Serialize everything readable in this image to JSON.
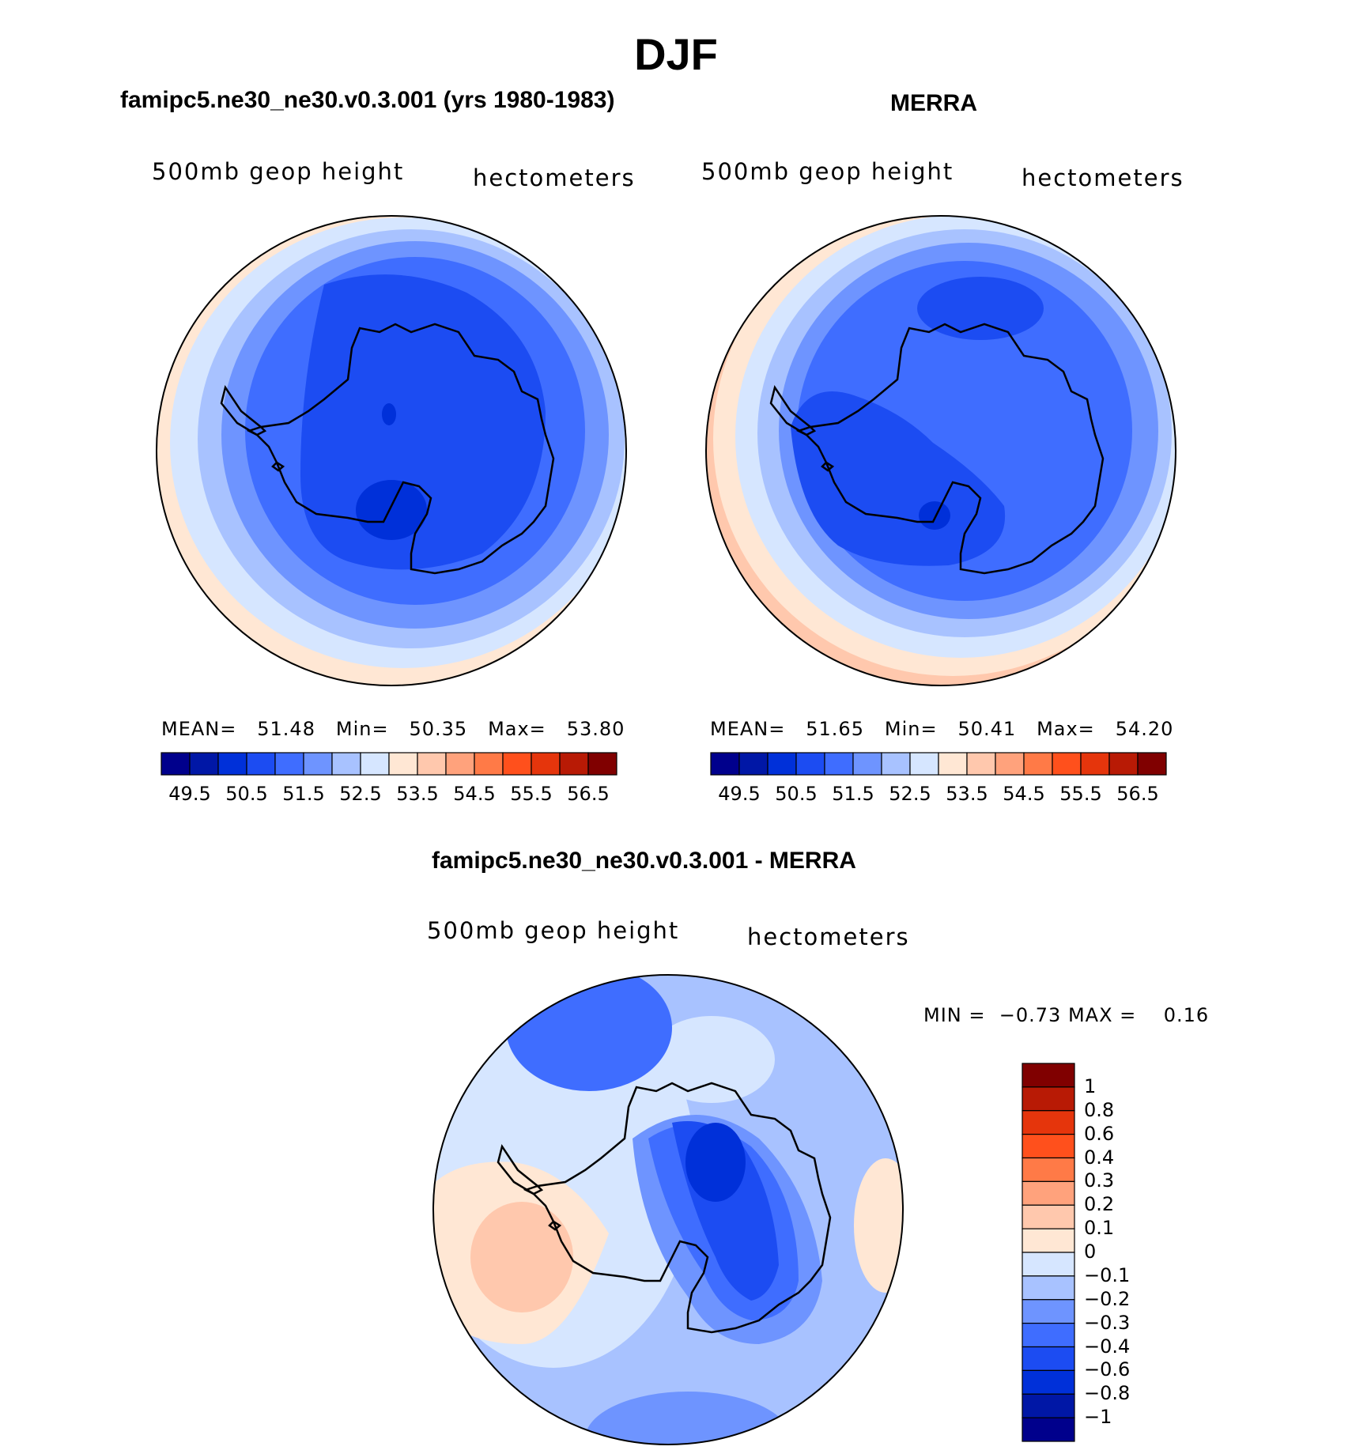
{
  "figure": {
    "title": "DJF"
  },
  "panels": [
    {
      "title": "famipc5.ne30_ne30.v0.3.001 (yrs 1980-1983)",
      "variable": "500mb geop height",
      "units": "hectometers",
      "stats": {
        "mean_label": "MEAN=",
        "mean": "51.48",
        "min_label": "Min=",
        "min": "50.35",
        "max_label": "Max=",
        "max": "53.80"
      }
    },
    {
      "title": "MERRA",
      "variable": "500mb geop height",
      "units": "hectometers",
      "stats": {
        "mean_label": "MEAN=",
        "mean": "51.65",
        "min_label": "Min=",
        "min": "50.41",
        "max_label": "Max=",
        "max": "54.20"
      }
    },
    {
      "title": "famipc5.ne30_ne30.v0.3.001 - MERRA",
      "variable": "500mb geop height",
      "units": "hectometers",
      "stats": {
        "min_label": "MIN =",
        "min": "−0.73",
        "max_label": "MAX =",
        "max": "0.16"
      }
    }
  ],
  "colorbar_abs": {
    "colors": [
      "#00008c",
      "#0017a6",
      "#0030d9",
      "#1c4cf2",
      "#3f6dff",
      "#6e94ff",
      "#a8c2ff",
      "#d6e6ff",
      "#ffe7d4",
      "#ffc8ad",
      "#ffa27c",
      "#ff7a47",
      "#ff501c",
      "#e5350c",
      "#b81a05",
      "#800000"
    ],
    "tick_labels": [
      "49.5",
      "50.5",
      "51.5",
      "52.5",
      "53.5",
      "54.5",
      "55.5",
      "56.5"
    ]
  },
  "colorbar_diff": {
    "colors_top_to_bottom": [
      "#800000",
      "#b81a05",
      "#e5350c",
      "#ff501c",
      "#ff7a47",
      "#ffa27c",
      "#ffc8ad",
      "#ffe7d4",
      "#d6e6ff",
      "#a8c2ff",
      "#6e94ff",
      "#3f6dff",
      "#1c4cf2",
      "#0030d9",
      "#0017a6",
      "#00008c"
    ],
    "tick_labels": [
      "1",
      "0.8",
      "0.6",
      "0.4",
      "0.3",
      "0.2",
      "0.1",
      "0",
      "−0.1",
      "−0.2",
      "−0.3",
      "−0.4",
      "−0.6",
      "−0.8",
      "−1"
    ]
  },
  "map_colors": {
    "c_m1": "#0030d9",
    "c_m2": "#1c4cf2",
    "c_m3": "#3f6dff",
    "c_m4": "#6e94ff",
    "c_m5": "#a8c2ff",
    "c_m6": "#d6e6ff",
    "c_p1": "#ffe7d4",
    "c_p2": "#ffc8ad",
    "coast": "#000000"
  }
}
